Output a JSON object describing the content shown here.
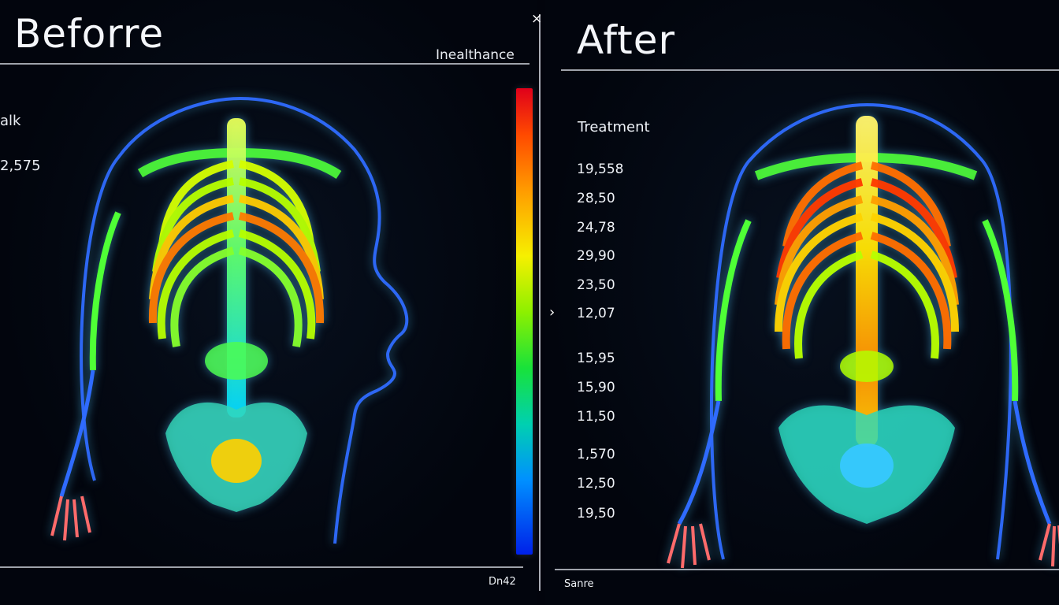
{
  "panels": {
    "before": {
      "title": "Beforre",
      "header_label": "Inealthance",
      "left_labels": [
        "alk",
        "2,575"
      ],
      "footer": "Dn42"
    },
    "after": {
      "title": "After",
      "header_label": "Treatment",
      "values": [
        "19,558",
        "28,50",
        "24,78",
        "29,90",
        "23,50",
        "12,07",
        "15,95",
        "15,90",
        "11,50",
        "1,570",
        "12,50",
        "19,50"
      ],
      "footer": "Sanre"
    }
  },
  "controls": {
    "close_icon": "close-icon",
    "chevron_icon": "chevron-right-icon",
    "close_glyph": "×",
    "chevron_glyph": "›"
  },
  "colors": {
    "background": "#02040c",
    "outline": "#2f6bff",
    "colorbar_top": "#e0001a",
    "colorbar_bottom": "#0020e8"
  }
}
